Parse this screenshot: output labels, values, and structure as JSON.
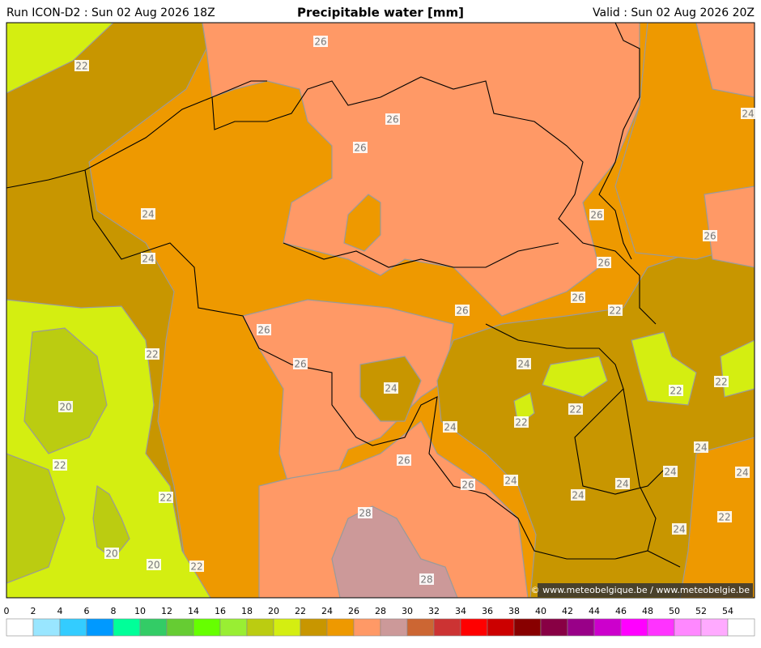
{
  "header": {
    "run": "Run ICON-D2 : Sun 02 Aug 2026 18Z",
    "title": "Precipitable water [mm]",
    "valid": "Valid : Sun 02 Aug 2026 20Z"
  },
  "credit": "© www.meteobelgique.be / www.meteobelgie.be",
  "contour_labels": [
    "26",
    "22",
    "26",
    "24",
    "26",
    "24",
    "26",
    "26",
    "24",
    "26",
    "26",
    "26",
    "22",
    "26",
    "22",
    "26",
    "24",
    "24",
    "22",
    "22",
    "20",
    "22",
    "22",
    "24",
    "24",
    "22",
    "26",
    "24",
    "24",
    "24",
    "26",
    "24",
    "24",
    "22",
    "28",
    "22",
    "24",
    "20",
    "20",
    "22",
    "28"
  ],
  "colorbar": {
    "ticks": [
      "0",
      "2",
      "4",
      "6",
      "8",
      "10",
      "12",
      "14",
      "16",
      "18",
      "20",
      "22",
      "24",
      "26",
      "28",
      "30",
      "32",
      "34",
      "36",
      "38",
      "40",
      "42",
      "44",
      "46",
      "48",
      "50",
      "52",
      "54"
    ],
    "colors": [
      "#ffffff",
      "#99e6ff",
      "#33ccff",
      "#0099ff",
      "#00ff99",
      "#33cc66",
      "#66cc33",
      "#66ff00",
      "#99ee33",
      "#bbcc11",
      "#d4ee11",
      "#c89600",
      "#ee9900",
      "#ff9966",
      "#cc9999",
      "#cc6633",
      "#cc3333",
      "#ff0000",
      "#cc0000",
      "#880000",
      "#880044",
      "#990088",
      "#cc00cc",
      "#ff00ff",
      "#ff33ff",
      "#ff88ff",
      "#ffaaff",
      "#ffffff"
    ]
  }
}
